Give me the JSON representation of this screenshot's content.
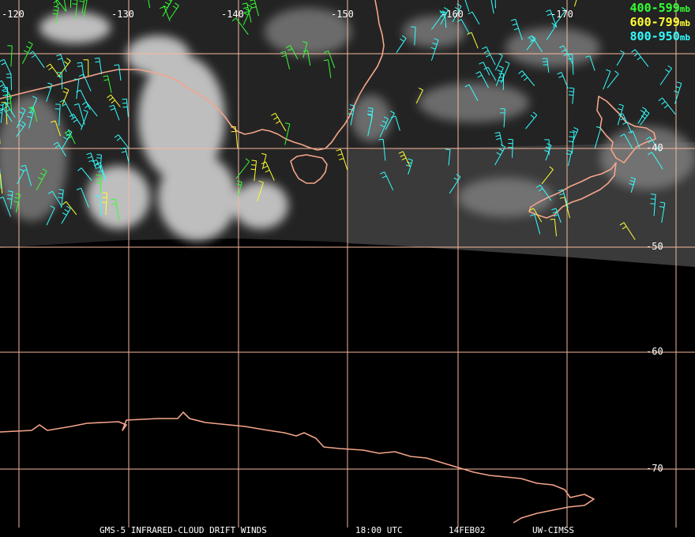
{
  "map": {
    "longitude_labels": [
      "-120",
      "-130",
      "-140",
      "-150",
      "-160",
      "-170"
    ],
    "latitude_labels": [
      "-40",
      "-50",
      "-60",
      "-70"
    ],
    "colors": {
      "background": "#000000",
      "gridline": "#f6b89c",
      "coastline": "#f4a58a",
      "label_text": "#ffffff"
    }
  },
  "legend": {
    "items": [
      {
        "range": "400-599",
        "unit": "mb",
        "color": "#33ff33"
      },
      {
        "range": "600-799",
        "unit": "mb",
        "color": "#ffff33"
      },
      {
        "range": "800-950",
        "unit": "mb",
        "color": "#33ffff"
      }
    ]
  },
  "footer": {
    "product": "GMS-5 INFRARED-CLOUD DRIFT WINDS",
    "time": "18:00 UTC",
    "date": "14FEB02",
    "source": "UW-CIMSS"
  }
}
